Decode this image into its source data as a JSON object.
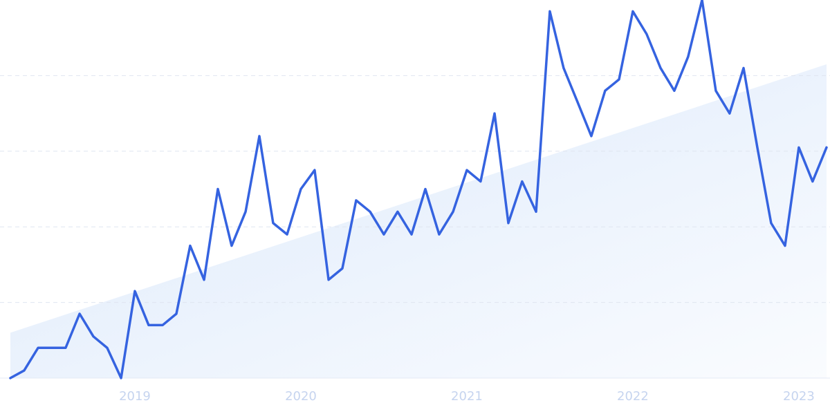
{
  "chart_data": {
    "type": "line",
    "x": [
      2018.25,
      2018.333,
      2018.417,
      2018.5,
      2018.583,
      2018.667,
      2018.75,
      2018.833,
      2018.917,
      2019,
      2019.083,
      2019.167,
      2019.25,
      2019.333,
      2019.417,
      2019.5,
      2019.583,
      2019.667,
      2019.75,
      2019.833,
      2019.917,
      2020,
      2020.083,
      2020.167,
      2020.25,
      2020.333,
      2020.417,
      2020.5,
      2020.583,
      2020.667,
      2020.75,
      2020.833,
      2020.917,
      2021,
      2021.083,
      2021.167,
      2021.25,
      2021.333,
      2021.417,
      2021.5,
      2021.583,
      2021.667,
      2021.75,
      2021.833,
      2021.917,
      2022,
      2022.083,
      2022.167,
      2022.25,
      2022.333,
      2022.417,
      2022.5,
      2022.583,
      2022.667,
      2022.75,
      2022.833,
      2022.917,
      2023,
      2023.083,
      2023.167
    ],
    "series": [
      {
        "color": "#3563e0",
        "values": [
          0,
          2,
          8,
          8,
          8,
          17,
          11,
          8,
          0,
          23,
          14,
          14,
          17,
          35,
          26,
          50,
          35,
          44,
          64,
          41,
          38,
          50,
          55,
          26,
          29,
          47,
          44,
          38,
          44,
          38,
          50,
          38,
          44,
          55,
          52,
          70,
          41,
          52,
          44,
          97,
          82,
          73,
          64,
          76,
          79,
          97,
          91,
          82,
          76,
          85,
          100,
          76,
          70,
          82,
          61,
          41,
          35,
          61,
          52,
          61
        ]
      }
    ],
    "trend": {
      "x": [
        2018.25,
        2023.167
      ],
      "values": [
        12,
        83
      ],
      "color": "#dce9fb"
    },
    "xlim": [
      2018.25,
      2023.167
    ],
    "xticks": [
      2019,
      2020,
      2021,
      2022,
      2023
    ],
    "ylim": [
      0,
      100
    ],
    "ygrid": [
      20,
      40,
      60,
      80
    ],
    "grid": true
  }
}
